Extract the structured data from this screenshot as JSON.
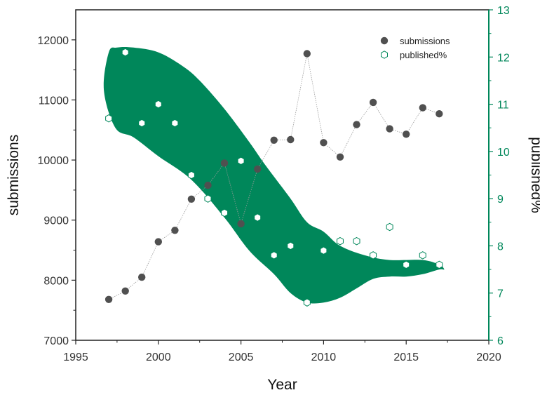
{
  "chart_data": {
    "type": "scatter",
    "x_axis": {
      "label": "Year",
      "range": [
        1995,
        2020
      ],
      "ticks": [
        "1995",
        "2000",
        "2005",
        "2010",
        "2015",
        "2020"
      ]
    },
    "y_axis_left": {
      "label": "submissions",
      "range": [
        7000,
        12500
      ],
      "ticks": [
        "7000",
        "8000",
        "9000",
        "10000",
        "11000",
        "12000"
      ]
    },
    "y_axis_right": {
      "label": "published%",
      "range": [
        6,
        13
      ],
      "ticks": [
        "6",
        "7",
        "8",
        "9",
        "10",
        "11",
        "12",
        "13"
      ],
      "color": "#00875a"
    },
    "series": [
      {
        "name": "submissions",
        "axis": "left",
        "marker": "circle",
        "color": "#505050",
        "connector": "dotted-line",
        "points": [
          [
            1997,
            7680
          ],
          [
            1998,
            7820
          ],
          [
            1999,
            8050
          ],
          [
            2000,
            8640
          ],
          [
            2001,
            8830
          ],
          [
            2002,
            9350
          ],
          [
            2003,
            9580
          ],
          [
            2004,
            9950
          ],
          [
            2005,
            8940
          ],
          [
            2006,
            9850
          ],
          [
            2007,
            10330
          ],
          [
            2008,
            10340
          ],
          [
            2009,
            11770
          ],
          [
            2010,
            10290
          ],
          [
            2011,
            10050
          ],
          [
            2012,
            10590
          ],
          [
            2013,
            10960
          ],
          [
            2014,
            10520
          ],
          [
            2015,
            10430
          ],
          [
            2016,
            10870
          ],
          [
            2017,
            10770
          ]
        ]
      },
      {
        "name": "published%",
        "axis": "right",
        "marker": "hexagon",
        "color": "#00875a",
        "points": [
          [
            1997,
            10.7
          ],
          [
            1998,
            12.1
          ],
          [
            1999,
            10.6
          ],
          [
            2000,
            11.0
          ],
          [
            2001,
            10.6
          ],
          [
            2002,
            9.5
          ],
          [
            2003,
            9.0
          ],
          [
            2004,
            8.7
          ],
          [
            2005,
            9.8
          ],
          [
            2006,
            8.6
          ],
          [
            2007,
            7.8
          ],
          [
            2008,
            8.0
          ],
          [
            2009,
            6.8
          ],
          [
            2010,
            7.9
          ],
          [
            2011,
            8.1
          ],
          [
            2012,
            8.1
          ],
          [
            2013,
            7.8
          ],
          [
            2014,
            8.4
          ],
          [
            2015,
            7.6
          ],
          [
            2016,
            7.8
          ],
          [
            2017,
            7.6
          ]
        ]
      }
    ],
    "band": {
      "axis": "right",
      "color": "#00875a",
      "upper": [
        [
          1996.7,
          11.3
        ],
        [
          1997.0,
          12.1
        ],
        [
          1997.5,
          12.2
        ],
        [
          1998.5,
          12.2
        ],
        [
          2000.0,
          12.1
        ],
        [
          2001.5,
          11.8
        ],
        [
          2002.5,
          11.5
        ],
        [
          2004.0,
          10.9
        ],
        [
          2005.5,
          10.2
        ],
        [
          2006.5,
          9.7
        ],
        [
          2008.0,
          9.0
        ],
        [
          2009.0,
          8.5
        ],
        [
          2010.0,
          8.3
        ],
        [
          2011.0,
          8.0
        ],
        [
          2012.5,
          7.8
        ],
        [
          2014.0,
          7.7
        ],
        [
          2016.0,
          7.7
        ],
        [
          2017.0,
          7.6
        ],
        [
          2017.3,
          7.5
        ]
      ],
      "lower": [
        [
          1997.4,
          10.5
        ],
        [
          1998.5,
          10.3
        ],
        [
          2000.0,
          9.9
        ],
        [
          2002.0,
          9.4
        ],
        [
          2004.0,
          8.6
        ],
        [
          2005.5,
          7.9
        ],
        [
          2007.0,
          7.4
        ],
        [
          2008.0,
          7.0
        ],
        [
          2009.0,
          6.8
        ],
        [
          2010.0,
          6.8
        ],
        [
          2011.0,
          6.9
        ],
        [
          2012.0,
          7.1
        ],
        [
          2013.0,
          7.3
        ],
        [
          2014.0,
          7.35
        ],
        [
          2015.0,
          7.35
        ],
        [
          2016.0,
          7.4
        ],
        [
          2017.0,
          7.5
        ]
      ]
    },
    "legend": {
      "placement": "top-right",
      "entries": [
        {
          "label": "submissions",
          "marker": "circle",
          "color": "#505050"
        },
        {
          "label": "published%",
          "marker": "hexagon-outline",
          "color": "#00875a"
        }
      ]
    },
    "grid": false
  }
}
